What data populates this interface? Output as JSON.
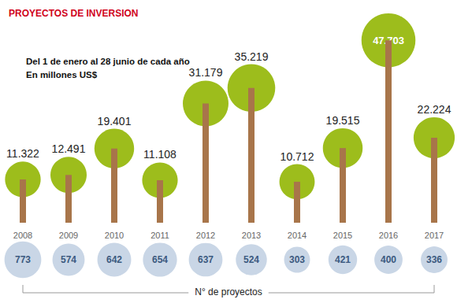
{
  "chart_data": [
    {
      "type": "bar",
      "title": "PROYECTOS DE INVERSION",
      "subtitle": "Del 1 de enero al 28 junio de cada año\nEn millones US$",
      "categories": [
        "2008",
        "2009",
        "2010",
        "2011",
        "2012",
        "2013",
        "2014",
        "2015",
        "2016",
        "2017"
      ],
      "values": [
        11322,
        12491,
        19401,
        11108,
        31179,
        35219,
        10712,
        19515,
        47703,
        22224
      ],
      "value_labels": [
        "11.322",
        "12.491",
        "19.401",
        "11.108",
        "31.179",
        "35.219",
        "10.712",
        "19.515",
        "47.703",
        "22.224"
      ],
      "color": "#9dbd1c",
      "ylim": [
        0,
        50000
      ],
      "yticks": [
        0,
        50000
      ],
      "tick_labels": "x",
      "grid": false,
      "data_labels": true
    },
    {
      "type": "scatter",
      "title": "N° de proyectos",
      "categories": [
        "2008",
        "2009",
        "2010",
        "2011",
        "2012",
        "2013",
        "2014",
        "2015",
        "2016",
        "2017"
      ],
      "values": [
        773,
        574,
        642,
        654,
        637,
        524,
        303,
        421,
        400,
        336
      ],
      "color": "#c9d6e6",
      "data_labels": true,
      "tick_labels": false
    }
  ]
}
